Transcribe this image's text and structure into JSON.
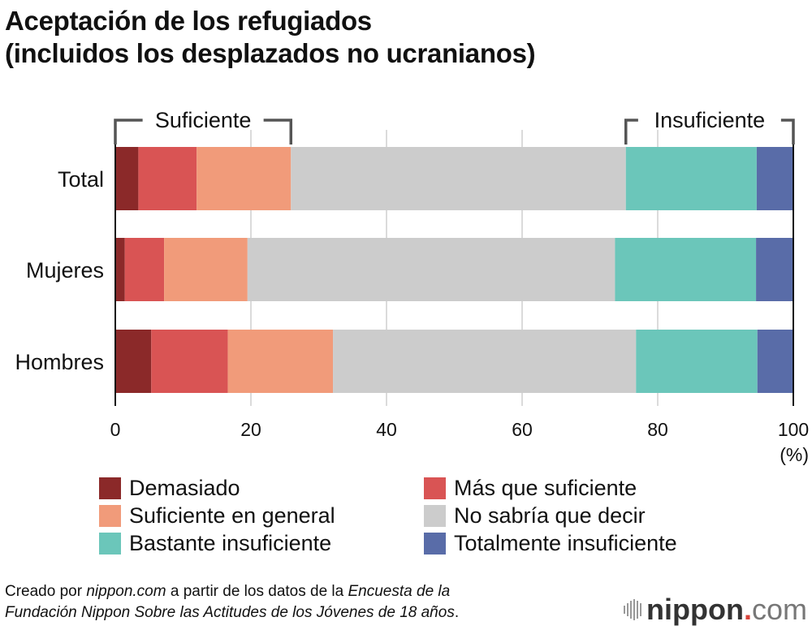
{
  "title_line1": "Aceptación de los refugiados",
  "title_line2": "(incluidos los desplazados no ucranianos)",
  "chart_data": {
    "type": "bar",
    "orientation": "horizontal-stacked-100",
    "title": "Aceptación de los refugiados (incluidos los desplazados no ucranianos)",
    "categories": [
      "Total",
      "Mujeres",
      "Hombres"
    ],
    "series": [
      {
        "name": "Demasiado",
        "color": "#8b2929",
        "values": [
          3.4,
          1.4,
          5.3
        ]
      },
      {
        "name": "Más que suficiente",
        "color": "#d95454",
        "values": [
          8.6,
          5.8,
          11.3
        ]
      },
      {
        "name": "Suficiente en general",
        "color": "#f19b7a",
        "values": [
          13.9,
          12.3,
          15.5
        ]
      },
      {
        "name": "No sabría que decir",
        "color": "#cccccc",
        "values": [
          49.4,
          54.2,
          44.7
        ]
      },
      {
        "name": "Bastante insuficiente",
        "color": "#6bc6ba",
        "values": [
          19.3,
          20.8,
          17.9
        ]
      },
      {
        "name": "Totalmente insuficiente",
        "color": "#596ca8",
        "values": [
          5.4,
          5.5,
          5.3
        ]
      }
    ],
    "xlim": [
      0,
      100
    ],
    "xticks": [
      "0",
      "20",
      "40",
      "60",
      "80",
      "100"
    ],
    "xunit": "(%)",
    "grid": true,
    "brackets": [
      {
        "label": "Suficiente",
        "from": 0,
        "to": 25.9
      },
      {
        "label": "Insuficiente",
        "from": 75.3,
        "to": 100
      }
    ],
    "legend_position": "bottom"
  },
  "footer": {
    "p1": "Creado por ",
    "p2": "nippon.com",
    "p3": " a partir de los datos de la ",
    "p4": "Encuesta de la",
    "p5": "Fundación Nippon Sobre las Actitudes de los Jóvenes de 18 años",
    "p6": "."
  },
  "logo": {
    "main": "nippon",
    "dot": ".",
    "suffix": "com"
  }
}
